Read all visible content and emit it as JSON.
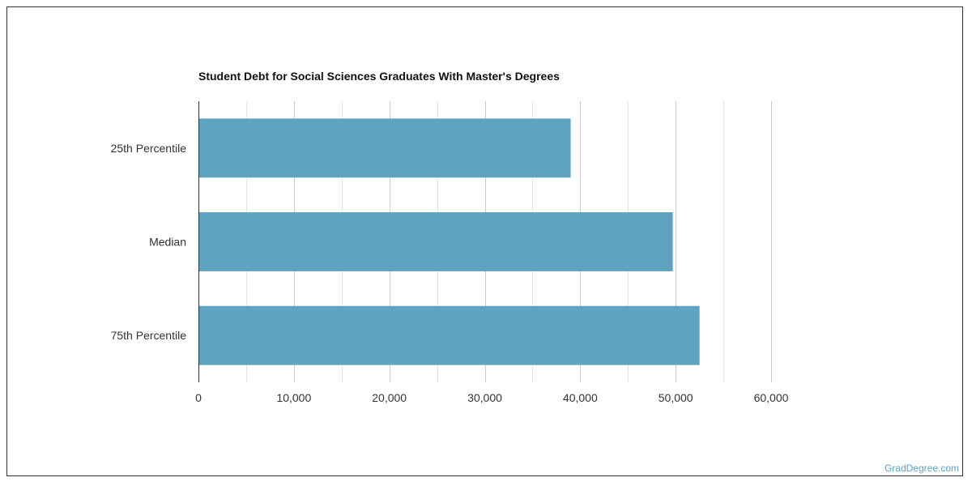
{
  "chart_data": {
    "type": "bar",
    "orientation": "horizontal",
    "title": "Student Debt for Social Sciences Graduates With Master's Degrees",
    "categories": [
      "25th Percentile",
      "Median",
      "75th Percentile"
    ],
    "values": [
      39000,
      49700,
      52500
    ],
    "xlim": [
      0,
      60000
    ],
    "xticks": [
      0,
      10000,
      20000,
      30000,
      40000,
      50000,
      60000
    ],
    "xtick_labels": [
      "0",
      "10,000",
      "20,000",
      "30,000",
      "40,000",
      "50,000",
      "60,000"
    ],
    "grid": true,
    "bar_color": "#5ea3c0"
  },
  "watermark": "GradDegree.com"
}
